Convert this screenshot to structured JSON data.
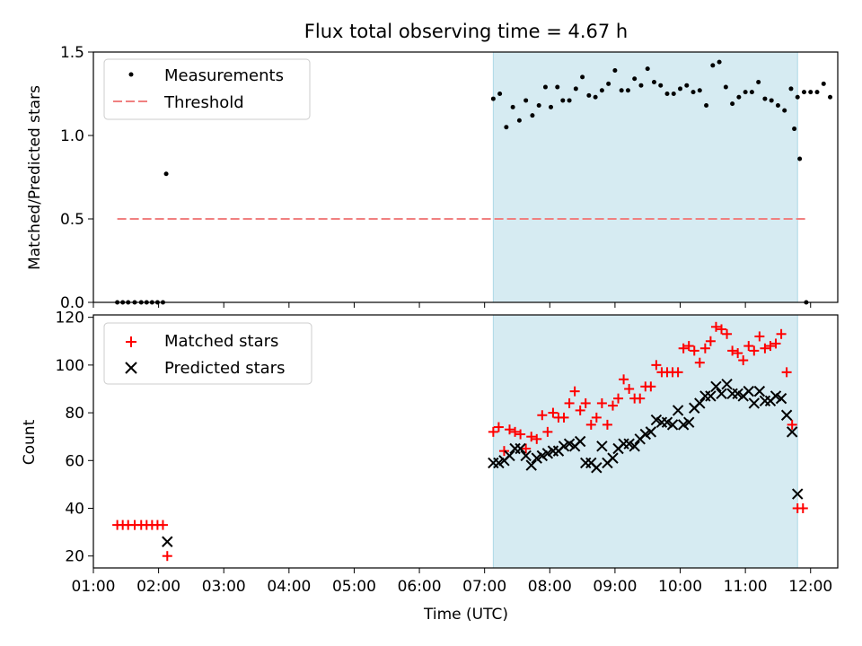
{
  "figure": {
    "title": "Flux total observing time = 4.67 h"
  },
  "chart_data": [
    {
      "type": "scatter",
      "ylabel": "Matched/Predicted stars",
      "xlabel": "",
      "xlim": [
        "01:00",
        "12:25"
      ],
      "ylim": [
        0,
        1.5
      ],
      "yticks": [
        "0.0",
        "0.5",
        "1.0",
        "1.5"
      ],
      "grid": false,
      "legend_position": "top-left",
      "legend": [
        "Measurements",
        "Threshold"
      ],
      "shaded_interval": [
        "07:08",
        "11:48"
      ],
      "threshold": {
        "name": "Threshold",
        "y": 0.5,
        "x_range": [
          "01:22",
          "11:55"
        ],
        "color": "#f08080",
        "style": "dashed"
      },
      "series": [
        {
          "name": "Measurements",
          "marker": "dot",
          "color": "#000000",
          "points": [
            [
              "01:22",
              0
            ],
            [
              "01:27",
              0
            ],
            [
              "01:32",
              0
            ],
            [
              "01:38",
              0
            ],
            [
              "01:44",
              0
            ],
            [
              "01:49",
              0
            ],
            [
              "01:54",
              0
            ],
            [
              "01:59",
              0
            ],
            [
              "02:04",
              0
            ],
            [
              "02:07",
              0.77
            ],
            [
              "07:08",
              1.22
            ],
            [
              "07:14",
              1.25
            ],
            [
              "07:20",
              1.05
            ],
            [
              "07:26",
              1.17
            ],
            [
              "07:32",
              1.09
            ],
            [
              "07:38",
              1.21
            ],
            [
              "07:44",
              1.12
            ],
            [
              "07:50",
              1.18
            ],
            [
              "07:56",
              1.29
            ],
            [
              "08:01",
              1.17
            ],
            [
              "08:07",
              1.29
            ],
            [
              "08:12",
              1.21
            ],
            [
              "08:18",
              1.21
            ],
            [
              "08:24",
              1.28
            ],
            [
              "08:30",
              1.35
            ],
            [
              "08:36",
              1.24
            ],
            [
              "08:42",
              1.23
            ],
            [
              "08:48",
              1.27
            ],
            [
              "08:54",
              1.31
            ],
            [
              "09:00",
              1.39
            ],
            [
              "09:06",
              1.27
            ],
            [
              "09:12",
              1.27
            ],
            [
              "09:18",
              1.34
            ],
            [
              "09:24",
              1.3
            ],
            [
              "09:30",
              1.4
            ],
            [
              "09:36",
              1.32
            ],
            [
              "09:42",
              1.3
            ],
            [
              "09:48",
              1.25
            ],
            [
              "09:54",
              1.25
            ],
            [
              "10:00",
              1.28
            ],
            [
              "10:06",
              1.3
            ],
            [
              "10:12",
              1.26
            ],
            [
              "10:18",
              1.27
            ],
            [
              "10:24",
              1.18
            ],
            [
              "10:30",
              1.42
            ],
            [
              "10:36",
              1.44
            ],
            [
              "10:42",
              1.29
            ],
            [
              "10:48",
              1.19
            ],
            [
              "10:54",
              1.23
            ],
            [
              "11:00",
              1.26
            ],
            [
              "11:06",
              1.26
            ],
            [
              "11:12",
              1.32
            ],
            [
              "11:18",
              1.22
            ],
            [
              "11:24",
              1.21
            ],
            [
              "11:30",
              1.18
            ],
            [
              "11:36",
              1.15
            ],
            [
              "11:42",
              1.28
            ],
            [
              "11:48",
              1.23
            ],
            [
              "11:54",
              1.26
            ],
            [
              "12:00",
              1.26
            ],
            [
              "12:06",
              1.26
            ],
            [
              "12:12",
              1.31
            ],
            [
              "12:18",
              1.23
            ],
            [
              "11:45",
              1.04
            ],
            [
              "11:50",
              0.86
            ],
            [
              "11:56",
              0
            ]
          ]
        }
      ]
    },
    {
      "type": "scatter",
      "ylabel": "Count",
      "xlabel": "Time (UTC)",
      "xlim": [
        "01:00",
        "12:25"
      ],
      "ylim": [
        15,
        121
      ],
      "yticks": [
        "20",
        "40",
        "60",
        "80",
        "100",
        "120"
      ],
      "xticks": [
        "01:00",
        "02:00",
        "03:00",
        "04:00",
        "05:00",
        "06:00",
        "07:00",
        "08:00",
        "09:00",
        "10:00",
        "11:00",
        "12:00"
      ],
      "grid": false,
      "legend_position": "top-left",
      "legend": [
        "Matched stars",
        "Predicted stars"
      ],
      "shaded_interval": [
        "07:08",
        "11:48"
      ],
      "series": [
        {
          "name": "Matched stars",
          "marker": "plus",
          "color": "#ff0000",
          "points": [
            [
              "01:22",
              33
            ],
            [
              "01:27",
              33
            ],
            [
              "01:32",
              33
            ],
            [
              "01:38",
              33
            ],
            [
              "01:44",
              33
            ],
            [
              "01:49",
              33
            ],
            [
              "01:54",
              33
            ],
            [
              "01:59",
              33
            ],
            [
              "02:04",
              33
            ],
            [
              "02:08",
              20
            ],
            [
              "07:08",
              72
            ],
            [
              "07:13",
              74
            ],
            [
              "07:18",
              64
            ],
            [
              "07:23",
              73
            ],
            [
              "07:28",
              72
            ],
            [
              "07:33",
              71
            ],
            [
              "07:38",
              65
            ],
            [
              "07:43",
              70
            ],
            [
              "07:48",
              69
            ],
            [
              "07:53",
              79
            ],
            [
              "07:58",
              72
            ],
            [
              "08:03",
              80
            ],
            [
              "08:08",
              78
            ],
            [
              "08:13",
              78
            ],
            [
              "08:18",
              84
            ],
            [
              "08:23",
              89
            ],
            [
              "08:28",
              81
            ],
            [
              "08:33",
              84
            ],
            [
              "08:38",
              75
            ],
            [
              "08:43",
              78
            ],
            [
              "08:48",
              84
            ],
            [
              "08:53",
              75
            ],
            [
              "08:58",
              83
            ],
            [
              "09:03",
              86
            ],
            [
              "09:08",
              94
            ],
            [
              "09:13",
              90
            ],
            [
              "09:18",
              86
            ],
            [
              "09:23",
              86
            ],
            [
              "09:28",
              91
            ],
            [
              "09:33",
              91
            ],
            [
              "09:38",
              100
            ],
            [
              "09:43",
              97
            ],
            [
              "09:48",
              97
            ],
            [
              "09:53",
              97
            ],
            [
              "09:58",
              97
            ],
            [
              "10:03",
              107
            ],
            [
              "10:08",
              108
            ],
            [
              "10:13",
              106
            ],
            [
              "10:18",
              101
            ],
            [
              "10:23",
              107
            ],
            [
              "10:28",
              110
            ],
            [
              "10:33",
              116
            ],
            [
              "10:38",
              115
            ],
            [
              "10:43",
              113
            ],
            [
              "10:48",
              106
            ],
            [
              "10:53",
              105
            ],
            [
              "10:58",
              102
            ],
            [
              "11:03",
              108
            ],
            [
              "11:08",
              106
            ],
            [
              "11:13",
              112
            ],
            [
              "11:18",
              107
            ],
            [
              "11:23",
              108
            ],
            [
              "11:28",
              109
            ],
            [
              "11:33",
              113
            ],
            [
              "11:38",
              97
            ],
            [
              "11:43",
              75
            ],
            [
              "11:48",
              40
            ],
            [
              "11:53",
              40
            ]
          ]
        },
        {
          "name": "Predicted stars",
          "marker": "x",
          "color": "#000000",
          "points": [
            [
              "02:08",
              26
            ],
            [
              "07:08",
              59
            ],
            [
              "07:13",
              59
            ],
            [
              "07:18",
              60
            ],
            [
              "07:23",
              62
            ],
            [
              "07:28",
              65
            ],
            [
              "07:33",
              65
            ],
            [
              "07:38",
              62
            ],
            [
              "07:43",
              58
            ],
            [
              "07:48",
              61
            ],
            [
              "07:53",
              62
            ],
            [
              "07:58",
              63
            ],
            [
              "08:03",
              64
            ],
            [
              "08:08",
              64
            ],
            [
              "08:13",
              66
            ],
            [
              "08:18",
              67
            ],
            [
              "08:23",
              66
            ],
            [
              "08:28",
              68
            ],
            [
              "08:33",
              59
            ],
            [
              "08:38",
              59
            ],
            [
              "08:43",
              57
            ],
            [
              "08:48",
              66
            ],
            [
              "08:53",
              59
            ],
            [
              "08:58",
              61
            ],
            [
              "09:03",
              65
            ],
            [
              "09:08",
              67
            ],
            [
              "09:13",
              67
            ],
            [
              "09:18",
              66
            ],
            [
              "09:23",
              69
            ],
            [
              "09:28",
              71
            ],
            [
              "09:33",
              72
            ],
            [
              "09:38",
              77
            ],
            [
              "09:43",
              76
            ],
            [
              "09:48",
              76
            ],
            [
              "09:53",
              75
            ],
            [
              "09:58",
              81
            ],
            [
              "10:03",
              75
            ],
            [
              "10:08",
              76
            ],
            [
              "10:13",
              82
            ],
            [
              "10:18",
              84
            ],
            [
              "10:23",
              87
            ],
            [
              "10:28",
              87
            ],
            [
              "10:33",
              91
            ],
            [
              "10:38",
              88
            ],
            [
              "10:43",
              92
            ],
            [
              "10:48",
              88
            ],
            [
              "10:53",
              88
            ],
            [
              "10:58",
              87
            ],
            [
              "11:03",
              89
            ],
            [
              "11:08",
              84
            ],
            [
              "11:13",
              89
            ],
            [
              "11:18",
              85
            ],
            [
              "11:23",
              85
            ],
            [
              "11:28",
              87
            ],
            [
              "11:33",
              86
            ],
            [
              "11:38",
              79
            ],
            [
              "11:43",
              72
            ],
            [
              "11:48",
              46
            ]
          ]
        }
      ]
    }
  ]
}
